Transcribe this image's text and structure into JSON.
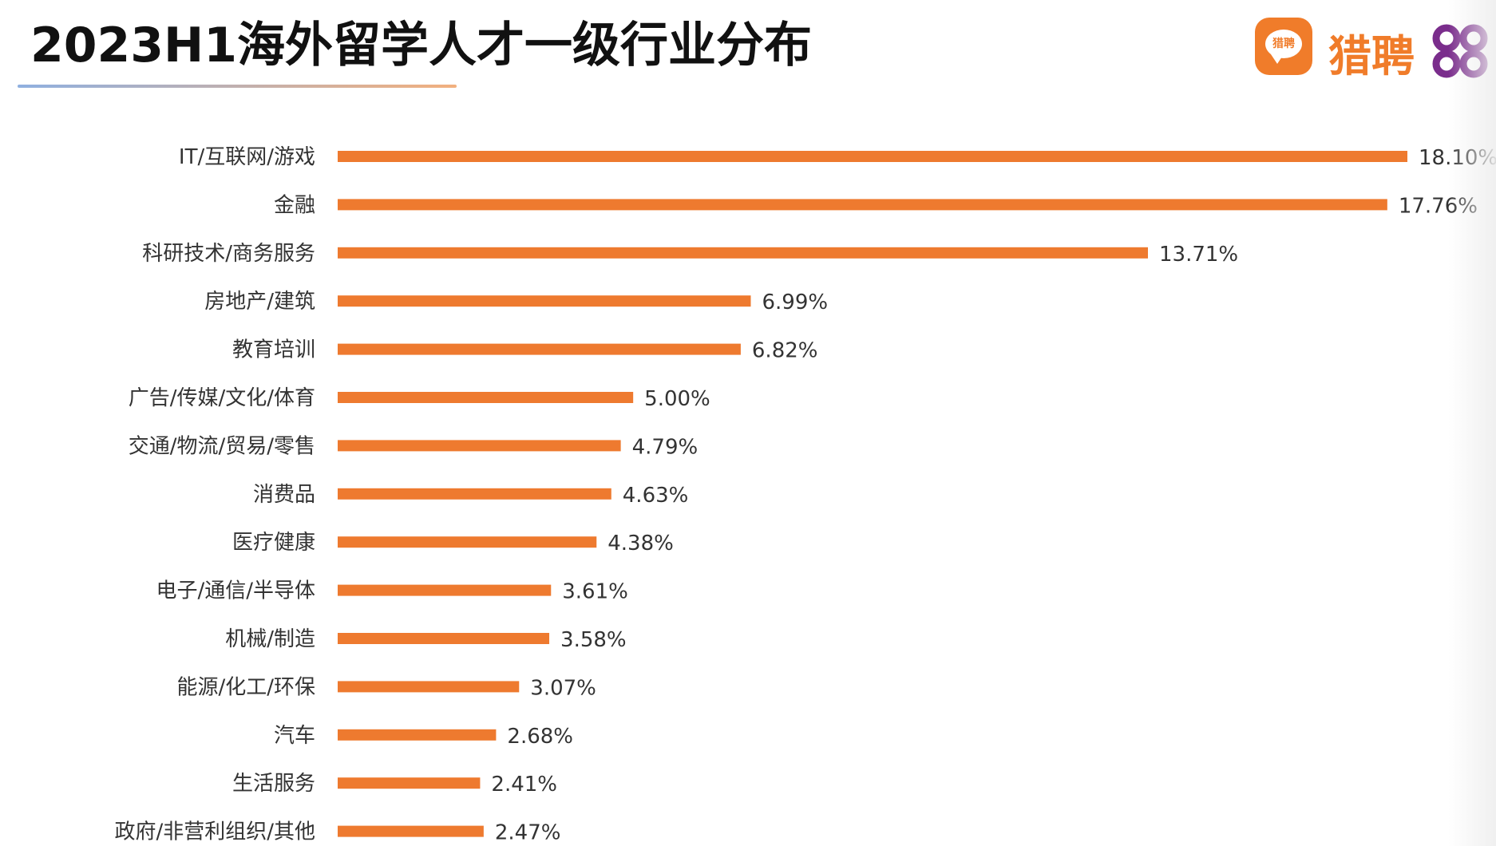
{
  "header": {
    "title": "2023H1海外留学人才一级行业分布"
  },
  "logo": {
    "brand_text": "猎聘",
    "badge_text": "猎聘",
    "icon": "liepin-logo-icon",
    "brand_color": "#f07c2a",
    "mark_color": "#7a2d8c"
  },
  "chart_data": {
    "type": "bar",
    "orientation": "horizontal",
    "title": "2023H1海外留学人才一级行业分布",
    "xlabel": "",
    "ylabel": "",
    "grid": false,
    "legend": "none",
    "bar_color": "#ee7a2f",
    "xlim": [
      0,
      18.1
    ],
    "categories": [
      "IT/互联网/游戏",
      "金融",
      "科研技术/商务服务",
      "房地产/建筑",
      "教育培训",
      "广告/传媒/文化/体育",
      "交通/物流/贸易/零售",
      "消费品",
      "医疗健康",
      "电子/通信/半导体",
      "机械/制造",
      "能源/化工/环保",
      "汽车",
      "生活服务",
      "政府/非营利组织/其他"
    ],
    "values": [
      18.1,
      17.76,
      13.71,
      6.99,
      6.82,
      5.0,
      4.79,
      4.63,
      4.38,
      3.61,
      3.58,
      3.07,
      2.68,
      2.41,
      2.47
    ],
    "value_labels": [
      "18.10%",
      "17.76%",
      "13.71%",
      "6.99%",
      "6.82%",
      "5.00%",
      "4.79%",
      "4.63%",
      "4.38%",
      "3.61%",
      "3.58%",
      "3.07%",
      "2.68%",
      "2.41%",
      "2.47%"
    ]
  }
}
